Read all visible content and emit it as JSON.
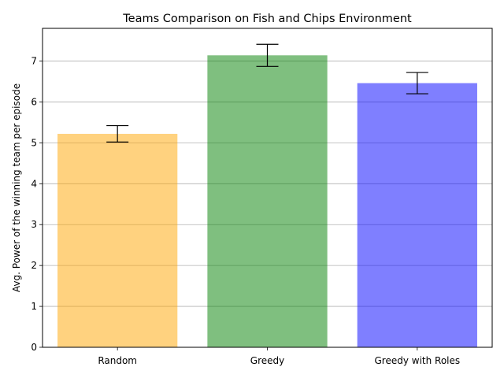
{
  "chart_data": {
    "type": "bar",
    "title": "Teams Comparison on Fish and Chips Environment",
    "xlabel": "",
    "ylabel": "Avg. Power of the winning team per episode",
    "categories": [
      "Random",
      "Greedy",
      "Greedy with Roles"
    ],
    "values": [
      5.22,
      7.14,
      6.46
    ],
    "errors": [
      0.2,
      0.27,
      0.26
    ],
    "colors": [
      "#ffa500",
      "#008000",
      "#0000ff"
    ],
    "bar_opacity": 0.5,
    "ylim": [
      0,
      7.8
    ],
    "yticks": [
      0,
      1,
      2,
      3,
      4,
      5,
      6,
      7
    ],
    "grid": "y-major"
  }
}
